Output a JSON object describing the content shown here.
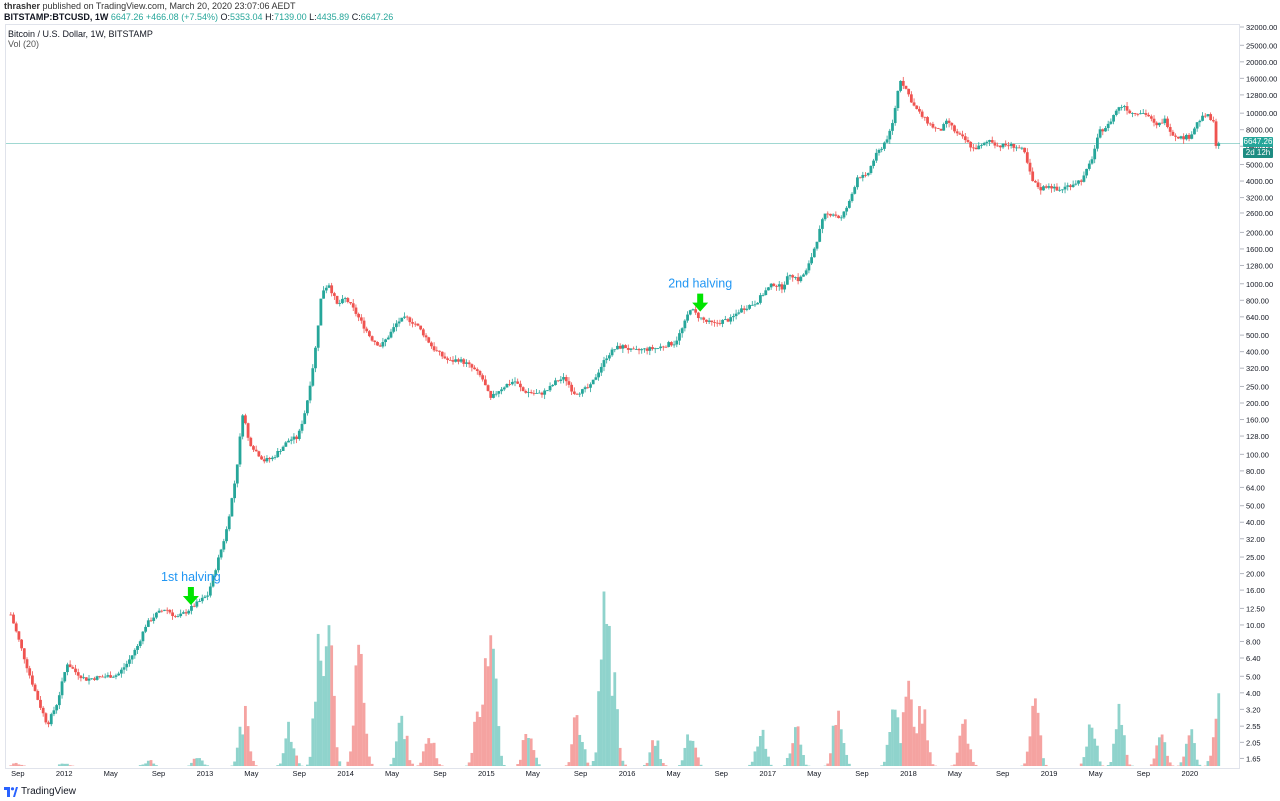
{
  "header": {
    "publisher": "thrasher",
    "published_text": "published on TradingView.com, March 20, 2020 23:07:06 AEDT",
    "symbol": "BITSTAMP:BTCUSD, 1W",
    "last": "6647.26",
    "change": "+466.08 (+7.54%)",
    "o_label": "O:",
    "o": "5353.04",
    "h_label": "H:",
    "h": "7139.00",
    "l_label": "L:",
    "l": "4435.89",
    "c_label": "C:",
    "c": "6647.26"
  },
  "legend": {
    "title": "Bitcoin / U.S. Dollar, 1W, BITSTAMP",
    "vol": "Vol (20)"
  },
  "price_badge": {
    "price": "6647.26",
    "countdown": "2d 12h"
  },
  "footer": {
    "brand": "TradingView"
  },
  "colors": {
    "up": "#26a69a",
    "down": "#ef5350",
    "vol_up": "#8fd3cc",
    "vol_down": "#f5a3a1",
    "annotation_text": "#2196f3",
    "arrow": "#00e400"
  },
  "chart_data": {
    "type": "candlestick",
    "title": "Bitcoin / U.S. Dollar, 1W, BITSTAMP",
    "y_scale": "log",
    "y_ticks": [
      1.65,
      2.05,
      2.55,
      3.2,
      4.0,
      5.0,
      6.4,
      8.0,
      10.0,
      12.5,
      16.0,
      20.0,
      25.0,
      32.0,
      40.0,
      50.0,
      64.0,
      80.0,
      100.0,
      128.0,
      160.0,
      200.0,
      250.0,
      320.0,
      400.0,
      500.0,
      640.0,
      800.0,
      1000.0,
      1280.0,
      1600.0,
      2000.0,
      2600.0,
      3200.0,
      4000.0,
      5000.0,
      6400.0,
      8000.0,
      10000.0,
      12800.0,
      16000.0,
      20000.0,
      25000.0,
      32000.0
    ],
    "x_ticks": [
      {
        "label": "Sep",
        "date": 2011.67
      },
      {
        "label": "2012",
        "date": 2012.0
      },
      {
        "label": "May",
        "date": 2012.33
      },
      {
        "label": "Sep",
        "date": 2012.67
      },
      {
        "label": "2013",
        "date": 2013.0
      },
      {
        "label": "May",
        "date": 2013.33
      },
      {
        "label": "Sep",
        "date": 2013.67
      },
      {
        "label": "2014",
        "date": 2014.0
      },
      {
        "label": "May",
        "date": 2014.33
      },
      {
        "label": "Sep",
        "date": 2014.67
      },
      {
        "label": "2015",
        "date": 2015.0
      },
      {
        "label": "May",
        "date": 2015.33
      },
      {
        "label": "Sep",
        "date": 2015.67
      },
      {
        "label": "2016",
        "date": 2016.0
      },
      {
        "label": "May",
        "date": 2016.33
      },
      {
        "label": "Sep",
        "date": 2016.67
      },
      {
        "label": "2017",
        "date": 2017.0
      },
      {
        "label": "May",
        "date": 2017.33
      },
      {
        "label": "Sep",
        "date": 2017.67
      },
      {
        "label": "2018",
        "date": 2018.0
      },
      {
        "label": "May",
        "date": 2018.33
      },
      {
        "label": "Sep",
        "date": 2018.67
      },
      {
        "label": "2019",
        "date": 2019.0
      },
      {
        "label": "May",
        "date": 2019.33
      },
      {
        "label": "Sep",
        "date": 2019.67
      },
      {
        "label": "2020",
        "date": 2020.0
      }
    ],
    "price_path": [
      [
        2011.62,
        11.5
      ],
      [
        2011.68,
        8.0
      ],
      [
        2011.75,
        5.2
      ],
      [
        2011.82,
        3.5
      ],
      [
        2011.88,
        2.6
      ],
      [
        2011.95,
        3.5
      ],
      [
        2012.02,
        6.0
      ],
      [
        2012.08,
        5.3
      ],
      [
        2012.15,
        4.8
      ],
      [
        2012.22,
        4.9
      ],
      [
        2012.3,
        5.0
      ],
      [
        2012.38,
        5.1
      ],
      [
        2012.45,
        6.0
      ],
      [
        2012.52,
        7.5
      ],
      [
        2012.58,
        10.0
      ],
      [
        2012.65,
        11.5
      ],
      [
        2012.72,
        12.5
      ],
      [
        2012.8,
        11.0
      ],
      [
        2012.87,
        12.0
      ],
      [
        2012.95,
        13.5
      ],
      [
        2013.02,
        15.0
      ],
      [
        2013.08,
        22.0
      ],
      [
        2013.15,
        35.0
      ],
      [
        2013.22,
        75.0
      ],
      [
        2013.27,
        180.0
      ],
      [
        2013.31,
        120.0
      ],
      [
        2013.36,
        105.0
      ],
      [
        2013.42,
        92.0
      ],
      [
        2013.48,
        95.0
      ],
      [
        2013.54,
        108.0
      ],
      [
        2013.6,
        122.0
      ],
      [
        2013.66,
        125.0
      ],
      [
        2013.72,
        190.0
      ],
      [
        2013.78,
        380.0
      ],
      [
        2013.83,
        900.0
      ],
      [
        2013.88,
        1000.0
      ],
      [
        2013.94,
        750.0
      ],
      [
        2014.0,
        820.0
      ],
      [
        2014.06,
        700.0
      ],
      [
        2014.12,
        580.0
      ],
      [
        2014.18,
        480.0
      ],
      [
        2014.25,
        430.0
      ],
      [
        2014.31,
        500.0
      ],
      [
        2014.37,
        600.0
      ],
      [
        2014.43,
        630.0
      ],
      [
        2014.5,
        580.0
      ],
      [
        2014.56,
        500.0
      ],
      [
        2014.62,
        420.0
      ],
      [
        2014.68,
        380.0
      ],
      [
        2014.74,
        350.0
      ],
      [
        2014.8,
        360.0
      ],
      [
        2014.86,
        340.0
      ],
      [
        2014.92,
        310.0
      ],
      [
        2014.97,
        280.0
      ],
      [
        2015.03,
        210.0
      ],
      [
        2015.08,
        235.0
      ],
      [
        2015.14,
        255.0
      ],
      [
        2015.2,
        270.0
      ],
      [
        2015.26,
        235.0
      ],
      [
        2015.32,
        230.0
      ],
      [
        2015.38,
        225.0
      ],
      [
        2015.44,
        240.0
      ],
      [
        2015.5,
        270.0
      ],
      [
        2015.56,
        280.0
      ],
      [
        2015.62,
        230.0
      ],
      [
        2015.68,
        235.0
      ],
      [
        2015.74,
        250.0
      ],
      [
        2015.8,
        310.0
      ],
      [
        2015.86,
        380.0
      ],
      [
        2015.92,
        420.0
      ],
      [
        2015.98,
        430.0
      ],
      [
        2016.04,
        400.0
      ],
      [
        2016.1,
        410.0
      ],
      [
        2016.16,
        415.0
      ],
      [
        2016.22,
        420.0
      ],
      [
        2016.28,
        440.0
      ],
      [
        2016.34,
        450.0
      ],
      [
        2016.4,
        560.0
      ],
      [
        2016.45,
        720.0
      ],
      [
        2016.5,
        650.0
      ],
      [
        2016.56,
        600.0
      ],
      [
        2016.62,
        580.0
      ],
      [
        2016.68,
        605.0
      ],
      [
        2016.74,
        620.0
      ],
      [
        2016.8,
        700.0
      ],
      [
        2016.86,
        740.0
      ],
      [
        2016.92,
        780.0
      ],
      [
        2016.98,
        900.0
      ],
      [
        2017.04,
        1000.0
      ],
      [
        2017.1,
        950.0
      ],
      [
        2017.16,
        1150.0
      ],
      [
        2017.22,
        1050.0
      ],
      [
        2017.28,
        1200.0
      ],
      [
        2017.34,
        1700.0
      ],
      [
        2017.4,
        2500.0
      ],
      [
        2017.46,
        2600.0
      ],
      [
        2017.52,
        2400.0
      ],
      [
        2017.58,
        3000.0
      ],
      [
        2017.64,
        4300.0
      ],
      [
        2017.7,
        4200.0
      ],
      [
        2017.76,
        5500.0
      ],
      [
        2017.82,
        6500.0
      ],
      [
        2017.88,
        8000.0
      ],
      [
        2017.94,
        16000.0
      ],
      [
        2017.98,
        14000.0
      ],
      [
        2018.04,
        11000.0
      ],
      [
        2018.1,
        9500.0
      ],
      [
        2018.16,
        8500.0
      ],
      [
        2018.22,
        7800.0
      ],
      [
        2018.28,
        9000.0
      ],
      [
        2018.34,
        7600.0
      ],
      [
        2018.4,
        7000.0
      ],
      [
        2018.46,
        6200.0
      ],
      [
        2018.52,
        6400.0
      ],
      [
        2018.58,
        7000.0
      ],
      [
        2018.64,
        6400.0
      ],
      [
        2018.7,
        6500.0
      ],
      [
        2018.76,
        6400.0
      ],
      [
        2018.82,
        6000.0
      ],
      [
        2018.88,
        4000.0
      ],
      [
        2018.94,
        3600.0
      ],
      [
        2019.0,
        3800.0
      ],
      [
        2019.06,
        3500.0
      ],
      [
        2019.12,
        3700.0
      ],
      [
        2019.18,
        3900.0
      ],
      [
        2019.24,
        4100.0
      ],
      [
        2019.3,
        5300.0
      ],
      [
        2019.36,
        7800.0
      ],
      [
        2019.42,
        8500.0
      ],
      [
        2019.48,
        10500.0
      ],
      [
        2019.53,
        11200.0
      ],
      [
        2019.58,
        10000.0
      ],
      [
        2019.64,
        10200.0
      ],
      [
        2019.7,
        9800.0
      ],
      [
        2019.76,
        8300.0
      ],
      [
        2019.82,
        9200.0
      ],
      [
        2019.88,
        7500.0
      ],
      [
        2019.94,
        7200.0
      ],
      [
        2020.0,
        7300.0
      ],
      [
        2020.06,
        9000.0
      ],
      [
        2020.12,
        9800.0
      ],
      [
        2020.17,
        8700.0
      ],
      [
        2020.2,
        5300.0
      ],
      [
        2020.215,
        6647.26
      ]
    ],
    "volume_peaks": [
      [
        2011.66,
        0.05
      ],
      [
        2012.0,
        0.05
      ],
      [
        2012.6,
        0.12
      ],
      [
        2012.95,
        0.2
      ],
      [
        2013.28,
        1.4
      ],
      [
        2013.6,
        1.0
      ],
      [
        2013.82,
        6.8
      ],
      [
        2013.87,
        9.8
      ],
      [
        2014.1,
        5.5
      ],
      [
        2014.4,
        1.3
      ],
      [
        2014.6,
        1.0
      ],
      [
        2014.95,
        2.0
      ],
      [
        2015.03,
        9.3
      ],
      [
        2015.3,
        1.2
      ],
      [
        2015.65,
        1.5
      ],
      [
        2015.85,
        12.4
      ],
      [
        2015.9,
        3.4
      ],
      [
        2016.2,
        0.6
      ],
      [
        2016.45,
        1.0
      ],
      [
        2016.95,
        1.0
      ],
      [
        2017.2,
        1.3
      ],
      [
        2017.5,
        1.7
      ],
      [
        2017.9,
        2.4
      ],
      [
        2018.0,
        2.6
      ],
      [
        2018.1,
        2.0
      ],
      [
        2018.4,
        1.3
      ],
      [
        2018.9,
        1.7
      ],
      [
        2019.3,
        1.1
      ],
      [
        2019.5,
        1.4
      ],
      [
        2019.8,
        0.8
      ],
      [
        2020.0,
        0.8
      ],
      [
        2020.2,
        2.0
      ]
    ],
    "annotations": [
      {
        "text": "1st halving",
        "date": 2012.9,
        "price": 12.4
      },
      {
        "text": "2nd halving",
        "date": 2016.52,
        "price": 650.0
      }
    ],
    "last_price": 6647.26
  }
}
